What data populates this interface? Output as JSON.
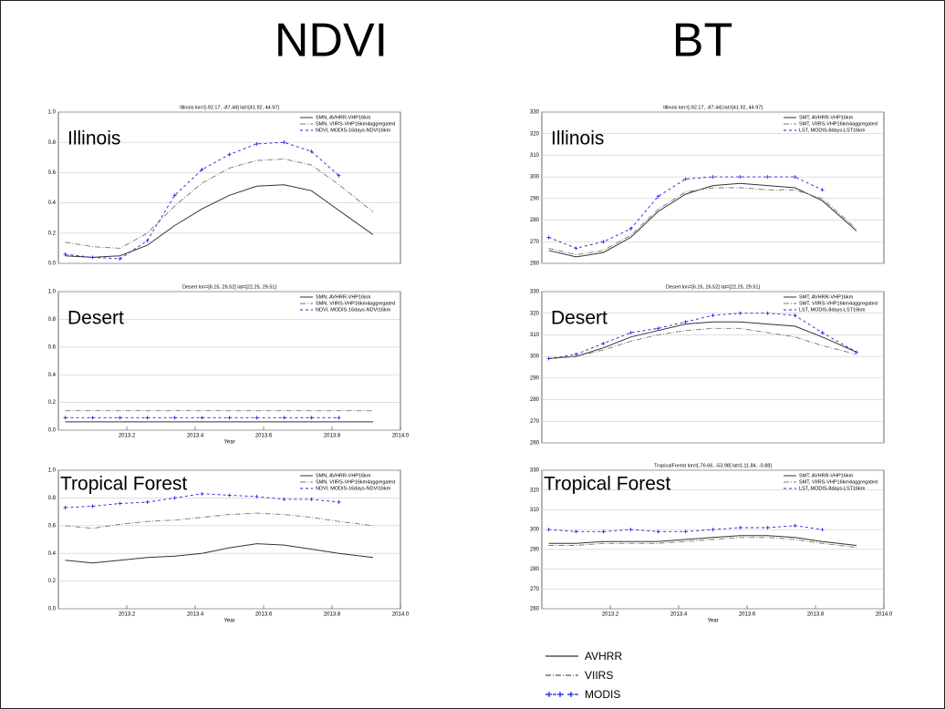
{
  "headings": {
    "left": "NDVI",
    "right": "BT"
  },
  "legend": [
    {
      "label": "AVHRR",
      "style": "solid",
      "color": "#333333"
    },
    {
      "label": "VIIRS",
      "style": "dashdot",
      "color": "#555555"
    },
    {
      "label": "MODIS",
      "style": "plus",
      "color": "#2222dd"
    }
  ],
  "chart_data": [
    {
      "type": "line",
      "title": "Illinois lon=[-92.17, -87.44] lat=[41.92, 44.97]",
      "annotation": "Illinois",
      "x": [
        2013.02,
        2013.1,
        2013.18,
        2013.26,
        2013.34,
        2013.42,
        2013.5,
        2013.58,
        2013.66,
        2013.74,
        2013.82,
        2013.92
      ],
      "xlim": [
        2013,
        2014
      ],
      "ylim": [
        0,
        1
      ],
      "yticks": [
        {
          "value": 0,
          "label": "0.0"
        },
        0.2,
        0.4,
        0.6,
        0.8,
        {
          "value": 1,
          "label": "1.0"
        }
      ],
      "grid": true,
      "legend_position": "upper right",
      "series": [
        {
          "name": "SMN, AVHRR-VHP16km",
          "style": "solid",
          "color": "#333333",
          "values": [
            0.05,
            0.04,
            0.05,
            0.12,
            0.25,
            0.36,
            0.45,
            0.51,
            0.52,
            0.48,
            0.35,
            0.19
          ]
        },
        {
          "name": "SMN, VIIRS-VHP16km4aggregated",
          "style": "dashdot",
          "color": "#777777",
          "values": [
            0.14,
            0.11,
            0.1,
            0.2,
            0.38,
            0.53,
            0.63,
            0.68,
            0.69,
            0.65,
            0.52,
            0.34
          ]
        },
        {
          "name": "NDVI, MODIS-16days-NDVI16km",
          "style": "plus",
          "color": "#2222dd",
          "values": [
            0.06,
            0.04,
            0.03,
            0.15,
            0.45,
            0.62,
            0.72,
            0.79,
            0.8,
            0.74,
            0.58,
            null
          ]
        }
      ]
    },
    {
      "type": "line",
      "title": "Desert lon=[6.15, 26.52] lat=[22.25, 29.51]",
      "annotation": "Desert",
      "x": [
        2013.02,
        2013.1,
        2013.18,
        2013.26,
        2013.34,
        2013.42,
        2013.5,
        2013.58,
        2013.66,
        2013.74,
        2013.82,
        2013.92
      ],
      "xlim": [
        2013,
        2014
      ],
      "xlabel": "Year",
      "xticks": [
        2013.2,
        2013.4,
        2013.6,
        2013.8,
        {
          "value": 2014,
          "label": "2014.0"
        }
      ],
      "ylim": [
        0,
        1
      ],
      "yticks": [
        {
          "value": 0,
          "label": "0.0"
        },
        0.2,
        0.4,
        0.6,
        0.8,
        {
          "value": 1,
          "label": "1.0"
        }
      ],
      "grid": true,
      "legend_position": "upper right",
      "series": [
        {
          "name": "SMN, AVHRR-VHP16km",
          "style": "solid",
          "color": "#333333",
          "values": [
            0.06,
            0.06,
            0.06,
            0.06,
            0.06,
            0.06,
            0.06,
            0.06,
            0.06,
            0.06,
            0.06,
            0.06
          ]
        },
        {
          "name": "SMN, VIIRS-VHP16km4aggregated",
          "style": "dashdot",
          "color": "#777777",
          "values": [
            0.14,
            0.14,
            0.14,
            0.14,
            0.14,
            0.14,
            0.14,
            0.14,
            0.14,
            0.14,
            0.14,
            0.14
          ]
        },
        {
          "name": "NDVI, MODIS-16days-NDVI16km",
          "style": "plus",
          "color": "#2222dd",
          "values": [
            0.09,
            0.09,
            0.09,
            0.09,
            0.09,
            0.09,
            0.09,
            0.09,
            0.09,
            0.09,
            0.09,
            null
          ]
        }
      ]
    },
    {
      "type": "line",
      "annotation": "Tropical Forest",
      "x": [
        2013.02,
        2013.1,
        2013.18,
        2013.26,
        2013.34,
        2013.42,
        2013.5,
        2013.58,
        2013.66,
        2013.74,
        2013.82,
        2013.92
      ],
      "xlim": [
        2013,
        2014
      ],
      "xlabel": "Year",
      "xticks": [
        2013.2,
        2013.4,
        2013.6,
        2013.8,
        {
          "value": 2014,
          "label": "2014.0"
        }
      ],
      "ylim": [
        0,
        1
      ],
      "yticks": [
        {
          "value": 0,
          "label": "0.0"
        },
        0.2,
        0.4,
        0.6,
        0.8,
        {
          "value": 1,
          "label": "1.0"
        }
      ],
      "grid": true,
      "legend_position": "upper right",
      "series": [
        {
          "name": "SMN, AVHRR-VHP16km",
          "style": "solid",
          "color": "#333333",
          "values": [
            0.35,
            0.33,
            0.35,
            0.37,
            0.38,
            0.4,
            0.44,
            0.47,
            0.46,
            0.43,
            0.4,
            0.37
          ]
        },
        {
          "name": "SMN, VIIRS-VHP16km4aggregated",
          "style": "dashdot",
          "color": "#777777",
          "values": [
            0.6,
            0.58,
            0.61,
            0.63,
            0.64,
            0.66,
            0.68,
            0.69,
            0.68,
            0.66,
            0.63,
            0.6
          ]
        },
        {
          "name": "NDVI, MODIS-16days-NDVI16km",
          "style": "plus",
          "color": "#2222dd",
          "values": [
            0.73,
            0.74,
            0.76,
            0.77,
            0.8,
            0.83,
            0.82,
            0.81,
            0.79,
            0.79,
            0.77,
            null
          ]
        }
      ]
    },
    {
      "type": "line",
      "title": "Illinois lon=[-92.17, -87.44] lat=[41.92, 44.97]",
      "annotation": "Illinois",
      "x": [
        2013.02,
        2013.1,
        2013.18,
        2013.26,
        2013.34,
        2013.42,
        2013.5,
        2013.58,
        2013.66,
        2013.74,
        2013.82,
        2013.92
      ],
      "xlim": [
        2013,
        2014
      ],
      "ylim": [
        260,
        330
      ],
      "yticks": [
        260,
        270,
        280,
        290,
        300,
        310,
        320,
        330
      ],
      "grid": true,
      "legend_position": "upper right",
      "series": [
        {
          "name": "SMT, AVHRR-VHP16km",
          "style": "solid",
          "color": "#333333",
          "values": [
            266,
            263,
            265,
            272,
            284,
            292,
            296,
            297,
            296,
            295,
            289,
            275
          ]
        },
        {
          "name": "SMT, VIIRS-VHP16km4aggregated",
          "style": "dashdot",
          "color": "#777777",
          "values": [
            267,
            264,
            266,
            273,
            285,
            293,
            295,
            295,
            294,
            294,
            290,
            276
          ]
        },
        {
          "name": "LST, MODIS-8days-LST16km",
          "style": "plus",
          "color": "#2222dd",
          "values": [
            272,
            267,
            270,
            276,
            291,
            299,
            300,
            300,
            300,
            300,
            294,
            null
          ]
        }
      ]
    },
    {
      "type": "line",
      "title": "Desert lon=[6.15, 26.52] lat=[22.25, 29.51]",
      "annotation": "Desert",
      "x": [
        2013.02,
        2013.1,
        2013.18,
        2013.26,
        2013.34,
        2013.42,
        2013.5,
        2013.58,
        2013.66,
        2013.74,
        2013.82,
        2013.92
      ],
      "xlim": [
        2013,
        2014
      ],
      "ylim": [
        260,
        330
      ],
      "yticks": [
        260,
        270,
        280,
        290,
        300,
        310,
        320,
        330
      ],
      "grid": true,
      "legend_position": "upper right",
      "series": [
        {
          "name": "SMT, AVHRR-VHP16km",
          "style": "solid",
          "color": "#333333",
          "values": [
            299,
            300,
            304,
            309,
            312,
            315,
            316,
            316,
            315,
            314,
            309,
            302
          ]
        },
        {
          "name": "SMT, VIIRS-VHP16km4aggregated",
          "style": "dashdot",
          "color": "#777777",
          "values": [
            299,
            300,
            303,
            307,
            310,
            312,
            313,
            313,
            311,
            309,
            305,
            301
          ]
        },
        {
          "name": "LST, MODIS-8days-LST16km",
          "style": "plus",
          "color": "#2222dd",
          "values": [
            299,
            301,
            306,
            311,
            313,
            316,
            319,
            320,
            320,
            319,
            311,
            302
          ]
        }
      ]
    },
    {
      "type": "line",
      "title": "TropicalForest lon=[-76.66, -53.98] lat=[-11.84, -0.88]",
      "annotation": "Tropical Forest",
      "x": [
        2013.02,
        2013.1,
        2013.18,
        2013.26,
        2013.34,
        2013.42,
        2013.5,
        2013.58,
        2013.66,
        2013.74,
        2013.82,
        2013.92
      ],
      "xlim": [
        2013,
        2014
      ],
      "xlabel": "Year",
      "xticks": [
        2013.2,
        2013.4,
        2013.6,
        2013.8,
        {
          "value": 2014,
          "label": "2014.0"
        }
      ],
      "ylim": [
        260,
        330
      ],
      "yticks": [
        260,
        270,
        280,
        290,
        300,
        310,
        320,
        330
      ],
      "grid": true,
      "legend_position": "upper right",
      "series": [
        {
          "name": "SMT, AVHRR-VHP16km",
          "style": "solid",
          "color": "#333333",
          "values": [
            293,
            293,
            294,
            294,
            294,
            295,
            296,
            297,
            297,
            296,
            294,
            292
          ]
        },
        {
          "name": "SMT, VIIRS-VHP16km4aggregated",
          "style": "dashdot",
          "color": "#777777",
          "values": [
            292,
            292,
            293,
            293,
            293,
            294,
            295,
            296,
            296,
            295,
            293,
            291
          ]
        },
        {
          "name": "LST, MODIS-8days-LST16km",
          "style": "plus",
          "color": "#2222dd",
          "values": [
            300,
            299,
            299,
            300,
            299,
            299,
            300,
            301,
            301,
            302,
            300,
            null
          ]
        }
      ]
    }
  ]
}
